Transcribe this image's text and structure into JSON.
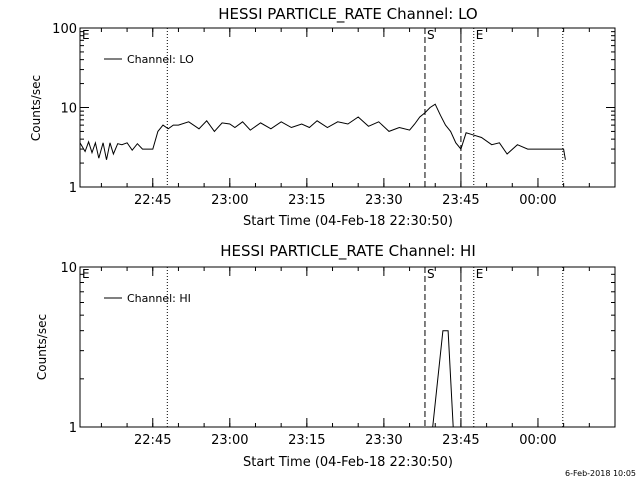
{
  "chart_data": [
    {
      "type": "line",
      "title": "HESSI PARTICLE_RATE Channel: LO",
      "xlabel": "Start Time (04-Feb-18 22:30:50)",
      "ylabel": "Counts/sec",
      "yscale": "log",
      "ylim": [
        1,
        100
      ],
      "yticks": [
        "1",
        "10",
        "100"
      ],
      "xlim": [
        "22:30:50",
        "00:15:00"
      ],
      "xticks": [
        "22:45",
        "23:00",
        "23:15",
        "23:30",
        "23:45",
        "00:00"
      ],
      "legend": "top-left",
      "series": [
        {
          "name": "Channel: LO",
          "x": [
            "22:30:50",
            "22:31:50",
            "22:32:30",
            "22:33:10",
            "22:33:50",
            "22:34:30",
            "22:35:20",
            "22:36:00",
            "22:36:40",
            "22:37:20",
            "22:38:10",
            "22:39:00",
            "22:40:00",
            "22:41:00",
            "22:42:00",
            "22:43:00",
            "22:44:00",
            "22:45:00",
            "22:46:00",
            "22:47:00",
            "22:48:00",
            "22:49:00",
            "22:50:00",
            "22:52:00",
            "22:54:00",
            "22:55:30",
            "22:57:00",
            "22:58:30",
            "23:00:00",
            "23:01:00",
            "23:02:30",
            "23:04:00",
            "23:06:00",
            "23:08:00",
            "23:10:00",
            "23:12:00",
            "23:14:00",
            "23:15:30",
            "23:17:00",
            "23:19:00",
            "23:21:00",
            "23:23:00",
            "23:25:00",
            "23:27:00",
            "23:29:00",
            "23:31:00",
            "23:33:00",
            "23:35:00",
            "23:36:00",
            "23:37:00",
            "23:38:00",
            "23:39:00",
            "23:40:00",
            "23:41:00",
            "23:42:00",
            "23:43:00",
            "23:44:00",
            "23:45:00",
            "23:46:00",
            "23:47:00",
            "23:49:00",
            "23:51:00",
            "23:52:30",
            "23:54:00",
            "23:56:00",
            "23:58:00",
            "00:00:00",
            "00:02:00",
            "00:04:00",
            "00:05:00",
            "00:05:20"
          ],
          "y": [
            3.6,
            2.8,
            3.7,
            2.7,
            3.6,
            2.3,
            3.6,
            2.2,
            3.6,
            2.6,
            3.5,
            3.4,
            3.6,
            2.9,
            3.5,
            3.0,
            3.0,
            3.0,
            5.0,
            6.0,
            5.4,
            6.0,
            6.0,
            6.6,
            5.4,
            6.8,
            5.0,
            6.4,
            6.2,
            5.6,
            6.6,
            5.2,
            6.4,
            5.4,
            6.6,
            5.6,
            6.2,
            5.6,
            6.8,
            5.6,
            6.6,
            6.2,
            7.6,
            5.8,
            6.6,
            5.0,
            5.6,
            5.2,
            6.2,
            7.6,
            8.6,
            10.0,
            11.0,
            8.0,
            6.0,
            5.0,
            3.6,
            3.0,
            4.8,
            4.6,
            4.2,
            3.4,
            3.6,
            2.6,
            3.4,
            3.0,
            3.0,
            3.0,
            3.0,
            3.0,
            2.2
          ]
        }
      ],
      "annotations": [
        {
          "label": "E",
          "x": "22:30:50",
          "style": "dotted"
        },
        {
          "label": "",
          "x": "22:47:50",
          "style": "dotted"
        },
        {
          "label": "S",
          "x": "23:38:00",
          "style": "dashed"
        },
        {
          "label": "",
          "x": "23:45:00",
          "style": "dashed"
        },
        {
          "label": "E",
          "x": "23:47:30",
          "style": "dotted"
        },
        {
          "label": "",
          "x": "00:04:50",
          "style": "dotted"
        }
      ]
    },
    {
      "type": "line",
      "title": "HESSI PARTICLE_RATE Channel: HI",
      "xlabel": "Start Time (04-Feb-18 22:30:50)",
      "ylabel": "Counts/sec",
      "yscale": "log",
      "ylim": [
        1,
        10
      ],
      "yticks": [
        "1",
        "10"
      ],
      "xlim": [
        "22:30:50",
        "00:15:00"
      ],
      "xticks": [
        "22:45",
        "23:00",
        "23:15",
        "23:30",
        "23:45",
        "00:00"
      ],
      "legend": "top-left",
      "series": [
        {
          "name": "Channel: HI",
          "x": [
            "23:39:30",
            "23:40:30",
            "23:41:30",
            "23:42:30",
            "23:43:30"
          ],
          "y": [
            1.0,
            2.0,
            4.0,
            4.0,
            1.0
          ]
        }
      ],
      "annotations": [
        {
          "label": "E",
          "x": "22:30:50",
          "style": "dotted"
        },
        {
          "label": "",
          "x": "22:47:50",
          "style": "dotted"
        },
        {
          "label": "S",
          "x": "23:38:00",
          "style": "dashed"
        },
        {
          "label": "",
          "x": "23:45:00",
          "style": "dashed"
        },
        {
          "label": "E",
          "x": "23:47:30",
          "style": "dotted"
        },
        {
          "label": "",
          "x": "00:04:50",
          "style": "dotted"
        }
      ]
    }
  ],
  "footer": {
    "timestamp": "6-Feb-2018 10:05"
  }
}
